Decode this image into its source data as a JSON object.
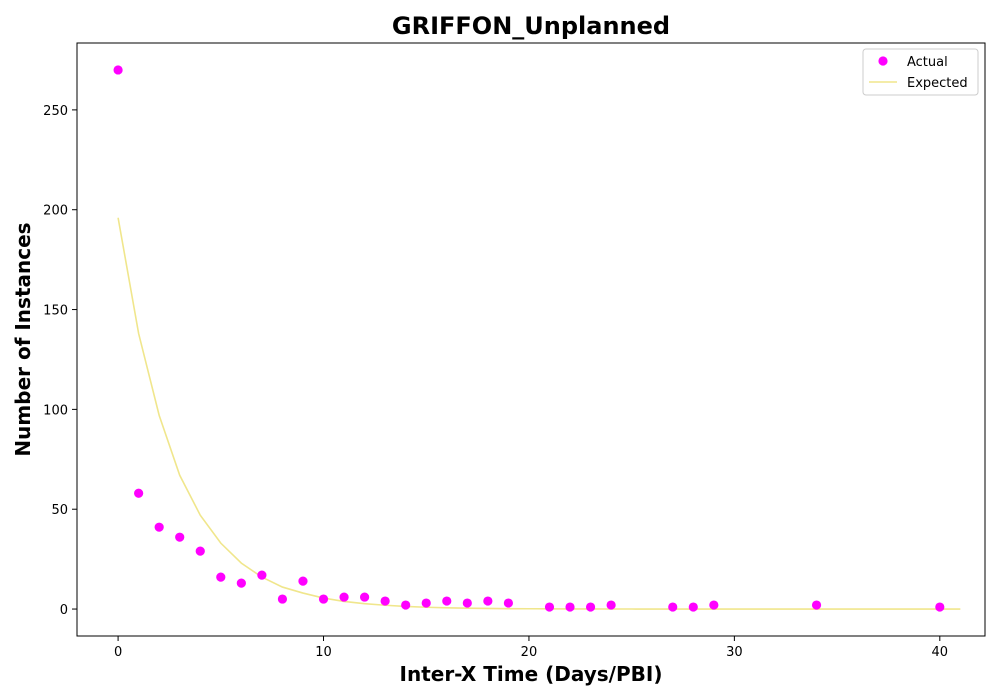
{
  "chart_data": {
    "type": "scatter",
    "title": "GRIFFON_Unplanned",
    "xlabel": "Inter-X Time (Days/PBI)",
    "ylabel": "Number of Instances",
    "xlim": [
      -2,
      42.2
    ],
    "ylim": [
      -13.5,
      283.5
    ],
    "xticks": [
      0,
      10,
      20,
      30,
      40
    ],
    "yticks": [
      0,
      50,
      100,
      150,
      200,
      250
    ],
    "grid": false,
    "legend_position": "top-right",
    "series": [
      {
        "name": "Actual",
        "kind": "scatter",
        "color": "#ff00ff",
        "points": [
          [
            0,
            270
          ],
          [
            1,
            58
          ],
          [
            2,
            41
          ],
          [
            3,
            36
          ],
          [
            4,
            29
          ],
          [
            5,
            16
          ],
          [
            6,
            13
          ],
          [
            7,
            17
          ],
          [
            8,
            5
          ],
          [
            9,
            14
          ],
          [
            10,
            5
          ],
          [
            11,
            6
          ],
          [
            12,
            6
          ],
          [
            13,
            4
          ],
          [
            14,
            2
          ],
          [
            15,
            3
          ],
          [
            16,
            4
          ],
          [
            17,
            3
          ],
          [
            18,
            4
          ],
          [
            19,
            3
          ],
          [
            21,
            1
          ],
          [
            22,
            1
          ],
          [
            23,
            1
          ],
          [
            24,
            2
          ],
          [
            27,
            1
          ],
          [
            28,
            1
          ],
          [
            29,
            2
          ],
          [
            34,
            2
          ],
          [
            40,
            1
          ]
        ]
      },
      {
        "name": "Expected",
        "kind": "line",
        "color": "#f0e68c",
        "points": [
          [
            0,
            196
          ],
          [
            1,
            138
          ],
          [
            2,
            97
          ],
          [
            3,
            67
          ],
          [
            4,
            47
          ],
          [
            5,
            33
          ],
          [
            6,
            23
          ],
          [
            7,
            16
          ],
          [
            8,
            11
          ],
          [
            9,
            8
          ],
          [
            10,
            5.5
          ],
          [
            11,
            3.8
          ],
          [
            12,
            2.7
          ],
          [
            13,
            1.9
          ],
          [
            14,
            1.3
          ],
          [
            15,
            0.9
          ],
          [
            16,
            0.6
          ],
          [
            17,
            0.45
          ],
          [
            18,
            0.3
          ],
          [
            19,
            0.2
          ],
          [
            20,
            0.15
          ],
          [
            21,
            0.1
          ],
          [
            22,
            0.07
          ],
          [
            23,
            0.05
          ],
          [
            24,
            0.03
          ],
          [
            25,
            0.02
          ],
          [
            26,
            0.01
          ],
          [
            27,
            0
          ],
          [
            28,
            0
          ],
          [
            29,
            0
          ],
          [
            30,
            0
          ],
          [
            31,
            0
          ],
          [
            32,
            0
          ],
          [
            33,
            0
          ],
          [
            34,
            0
          ],
          [
            35,
            0
          ],
          [
            36,
            0
          ],
          [
            37,
            0
          ],
          [
            38,
            0
          ],
          [
            39,
            0
          ],
          [
            40,
            0
          ],
          [
            41,
            0
          ]
        ]
      }
    ]
  }
}
